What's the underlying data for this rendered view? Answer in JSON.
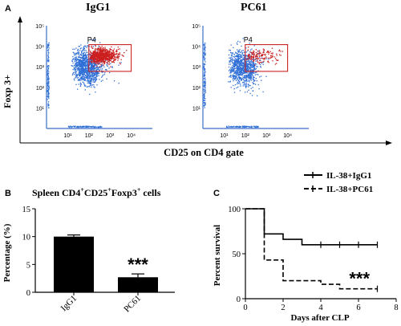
{
  "chart_data": [
    {
      "panel": "A",
      "type": "scatter",
      "plots": [
        {
          "title": "IgG1",
          "gate_label": "P4",
          "gate_x": [
            100,
            10000
          ],
          "gate_y": [
            600,
            12000
          ],
          "x_ticks": [
            "10¹",
            "10²",
            "10³",
            "10⁴"
          ],
          "y_ticks": [
            "10⁵",
            "10⁴",
            "10³",
            "10²",
            "10¹"
          ],
          "gated_density": "high"
        },
        {
          "title": "PC61",
          "gate_label": "P4",
          "gate_x": [
            100,
            10000
          ],
          "gate_y": [
            600,
            12000
          ],
          "x_ticks": [
            "10¹",
            "10²",
            "10³",
            "10⁴"
          ],
          "y_ticks": [
            "10⁵",
            "10⁴",
            "10³",
            "10²",
            "10¹"
          ],
          "gated_density": "low"
        }
      ],
      "ylabel": "Foxp 3+",
      "xlabel": "CD25 on CD4 gate",
      "xlim": [
        1,
        100000
      ],
      "ylim": [
        1,
        100000
      ],
      "scale": "log",
      "colors": {
        "ungated": "#2f6fd6",
        "gated": "#cc1f1f",
        "gate": "#cc2222"
      }
    },
    {
      "panel": "B",
      "type": "bar",
      "title_main": "Spleen CD4",
      "title_sup1": "+",
      "title_mid1": "CD25",
      "title_sup2": "+",
      "title_mid2": "Foxp3",
      "title_sup3": "+",
      "title_end": "  cells",
      "ylabel": "Percentage (%)",
      "categories": [
        "IgG1",
        "PC61"
      ],
      "values": [
        10.0,
        2.7
      ],
      "errors": [
        0.3,
        0.6
      ],
      "ylim": [
        0,
        15
      ],
      "yticks": [
        "0",
        "5",
        "10",
        "15"
      ],
      "annotation": "***",
      "bar_color": "#000000"
    },
    {
      "panel": "C",
      "type": "line",
      "step": true,
      "xlabel": "Days   after CLP",
      "ylabel": "Percent survival",
      "xlim": [
        0,
        8
      ],
      "ylim": [
        0,
        100
      ],
      "xticks": [
        "0",
        "2",
        "4",
        "6",
        "8"
      ],
      "yticks": [
        "0",
        "50",
        "100"
      ],
      "series": [
        {
          "name": "IL-38+IgG1",
          "style": "solid",
          "x": [
            0,
            1,
            2,
            3,
            7
          ],
          "y": [
            100,
            72,
            66,
            60,
            60
          ]
        },
        {
          "name": "IL-38+PC61",
          "style": "dashed",
          "x": [
            0,
            1,
            2,
            4,
            5,
            7
          ],
          "y": [
            100,
            43,
            20,
            16,
            11,
            11
          ]
        }
      ],
      "annotation": "***"
    }
  ]
}
